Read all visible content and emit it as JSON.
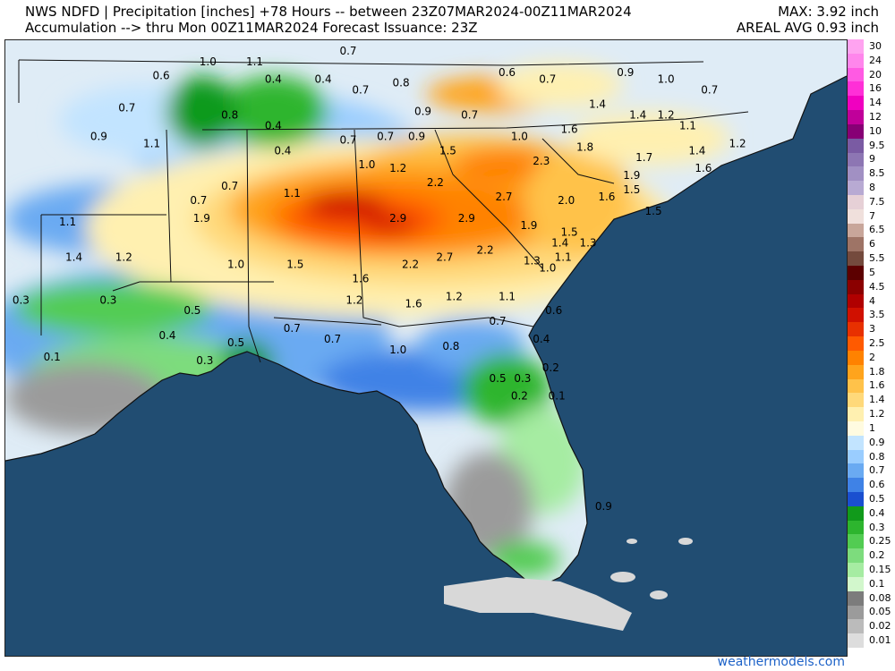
{
  "header": {
    "line1": "NWS NDFD | Precipitation [inches] +78 Hours -- between 23Z07MAR2024-00Z11MAR2024",
    "line2": "Accumulation --> thru Mon 00Z11MAR2024   Forecast Issuance: 23Z",
    "max": "MAX: 3.92 inch",
    "areal_avg": "AREAL AVG 0.93 inch"
  },
  "legend": [
    {
      "label": "30",
      "color": "#ffa3f0"
    },
    {
      "label": "24",
      "color": "#ff86ec"
    },
    {
      "label": "20",
      "color": "#ff5ae3"
    },
    {
      "label": "16",
      "color": "#ff2fd7"
    },
    {
      "label": "14",
      "color": "#f000c0"
    },
    {
      "label": "12",
      "color": "#c0009a"
    },
    {
      "label": "10",
      "color": "#870075"
    },
    {
      "label": "9.5",
      "color": "#7a5ba3"
    },
    {
      "label": "9",
      "color": "#8d76b3"
    },
    {
      "label": "8.5",
      "color": "#a190c3"
    },
    {
      "label": "8",
      "color": "#b8aad3"
    },
    {
      "label": "7.5",
      "color": "#e6d0d6"
    },
    {
      "label": "7",
      "color": "#f0e0dc"
    },
    {
      "label": "6.5",
      "color": "#c8a69a"
    },
    {
      "label": "6",
      "color": "#9e7466"
    },
    {
      "label": "5.5",
      "color": "#744a3d"
    },
    {
      "label": "5",
      "color": "#5c0000"
    },
    {
      "label": "4.5",
      "color": "#8b0000"
    },
    {
      "label": "4",
      "color": "#b00000"
    },
    {
      "label": "3.5",
      "color": "#d01000"
    },
    {
      "label": "3",
      "color": "#e83000"
    },
    {
      "label": "2.5",
      "color": "#ff5a00"
    },
    {
      "label": "2",
      "color": "#ff8200"
    },
    {
      "label": "1.8",
      "color": "#ffa41c"
    },
    {
      "label": "1.6",
      "color": "#ffc24a"
    },
    {
      "label": "1.4",
      "color": "#ffd97a"
    },
    {
      "label": "1.2",
      "color": "#fff0b0"
    },
    {
      "label": "1",
      "color": "#fffbe0"
    },
    {
      "label": "0.9",
      "color": "#c2e4ff"
    },
    {
      "label": "0.8",
      "color": "#9acdff"
    },
    {
      "label": "0.7",
      "color": "#6aaaf2"
    },
    {
      "label": "0.6",
      "color": "#3f82e6"
    },
    {
      "label": "0.5",
      "color": "#1a4fd0"
    },
    {
      "label": "0.4",
      "color": "#119a1b"
    },
    {
      "label": "0.3",
      "color": "#2db52e"
    },
    {
      "label": "0.25",
      "color": "#52cc52"
    },
    {
      "label": "0.2",
      "color": "#7ddc7d"
    },
    {
      "label": "0.15",
      "color": "#a6eca2"
    },
    {
      "label": "0.1",
      "color": "#d2f7cc"
    },
    {
      "label": "0.08",
      "color": "#7c7c7c"
    },
    {
      "label": "0.05",
      "color": "#9b9b9b"
    },
    {
      "label": "0.02",
      "color": "#bbbbbb"
    },
    {
      "label": "0.01",
      "color": "#dddddd"
    }
  ],
  "map_labels": [
    {
      "text": "0.7",
      "lon": -89.0,
      "lat": 38.4
    },
    {
      "text": "1.0",
      "lon": -93.5,
      "lat": 38.1
    },
    {
      "text": "1.1",
      "lon": -92.0,
      "lat": 38.1
    },
    {
      "text": "0.6",
      "lon": -95.0,
      "lat": 37.7
    },
    {
      "text": "0.4",
      "lon": -91.4,
      "lat": 37.6
    },
    {
      "text": "0.4",
      "lon": -89.8,
      "lat": 37.6
    },
    {
      "text": "0.7",
      "lon": -88.6,
      "lat": 37.3
    },
    {
      "text": "0.8",
      "lon": -87.3,
      "lat": 37.5
    },
    {
      "text": "0.6",
      "lon": -83.9,
      "lat": 37.8
    },
    {
      "text": "0.7",
      "lon": -82.6,
      "lat": 37.6
    },
    {
      "text": "0.9",
      "lon": -80.1,
      "lat": 37.8
    },
    {
      "text": "1.0",
      "lon": -78.8,
      "lat": 37.6
    },
    {
      "text": "0.7",
      "lon": -77.4,
      "lat": 37.3
    },
    {
      "text": "0.7",
      "lon": -96.1,
      "lat": 36.8
    },
    {
      "text": "0.8",
      "lon": -92.8,
      "lat": 36.6
    },
    {
      "text": "0.4",
      "lon": -91.4,
      "lat": 36.3
    },
    {
      "text": "0.9",
      "lon": -86.6,
      "lat": 36.7
    },
    {
      "text": "0.7",
      "lon": -85.1,
      "lat": 36.6
    },
    {
      "text": "1.6",
      "lon": -81.9,
      "lat": 36.2
    },
    {
      "text": "1.4",
      "lon": -81.0,
      "lat": 36.9
    },
    {
      "text": "1.4",
      "lon": -79.7,
      "lat": 36.6
    },
    {
      "text": "1.2",
      "lon": -78.8,
      "lat": 36.6
    },
    {
      "text": "1.1",
      "lon": -78.1,
      "lat": 36.3
    },
    {
      "text": "0.9",
      "lon": -97.0,
      "lat": 36.0
    },
    {
      "text": "1.1",
      "lon": -95.3,
      "lat": 35.8
    },
    {
      "text": "0.4",
      "lon": -91.1,
      "lat": 35.6
    },
    {
      "text": "0.7",
      "lon": -89.0,
      "lat": 35.9
    },
    {
      "text": "0.7",
      "lon": -87.8,
      "lat": 36.0
    },
    {
      "text": "0.9",
      "lon": -86.8,
      "lat": 36.0
    },
    {
      "text": "1.0",
      "lon": -83.5,
      "lat": 36.0
    },
    {
      "text": "1.8",
      "lon": -81.4,
      "lat": 35.7
    },
    {
      "text": "1.4",
      "lon": -77.8,
      "lat": 35.6
    },
    {
      "text": "1.2",
      "lon": -76.5,
      "lat": 35.8
    },
    {
      "text": "1.5",
      "lon": -85.8,
      "lat": 35.6
    },
    {
      "text": "1.7",
      "lon": -79.5,
      "lat": 35.4
    },
    {
      "text": "1.6",
      "lon": -77.6,
      "lat": 35.1
    },
    {
      "text": "1.0",
      "lon": -88.4,
      "lat": 35.2
    },
    {
      "text": "1.2",
      "lon": -87.4,
      "lat": 35.1
    },
    {
      "text": "2.3",
      "lon": -82.8,
      "lat": 35.3
    },
    {
      "text": "1.9",
      "lon": -79.9,
      "lat": 34.9
    },
    {
      "text": "2.2",
      "lon": -86.2,
      "lat": 34.7
    },
    {
      "text": "0.7",
      "lon": -93.8,
      "lat": 34.2
    },
    {
      "text": "0.7",
      "lon": -92.8,
      "lat": 34.6
    },
    {
      "text": "1.1",
      "lon": -90.8,
      "lat": 34.4
    },
    {
      "text": "2.7",
      "lon": -84.0,
      "lat": 34.3
    },
    {
      "text": "2.0",
      "lon": -82.0,
      "lat": 34.2
    },
    {
      "text": "1.6",
      "lon": -80.7,
      "lat": 34.3
    },
    {
      "text": "1.5",
      "lon": -79.2,
      "lat": 33.9
    },
    {
      "text": "1.5",
      "lon": -79.9,
      "lat": 34.5
    },
    {
      "text": "1.1",
      "lon": -98.0,
      "lat": 33.6
    },
    {
      "text": "1.9",
      "lon": -93.7,
      "lat": 33.7
    },
    {
      "text": "2.9",
      "lon": -87.4,
      "lat": 33.7
    },
    {
      "text": "2.9",
      "lon": -85.2,
      "lat": 33.7
    },
    {
      "text": "1.9",
      "lon": -83.2,
      "lat": 33.5
    },
    {
      "text": "1.5",
      "lon": -81.9,
      "lat": 33.3
    },
    {
      "text": "1.4",
      "lon": -82.2,
      "lat": 33.0
    },
    {
      "text": "1.3",
      "lon": -81.3,
      "lat": 33.0
    },
    {
      "text": "1.4",
      "lon": -97.8,
      "lat": 32.6
    },
    {
      "text": "1.2",
      "lon": -96.2,
      "lat": 32.6
    },
    {
      "text": "1.0",
      "lon": -92.6,
      "lat": 32.4
    },
    {
      "text": "1.5",
      "lon": -90.7,
      "lat": 32.4
    },
    {
      "text": "2.2",
      "lon": -87.0,
      "lat": 32.4
    },
    {
      "text": "2.7",
      "lon": -85.9,
      "lat": 32.6
    },
    {
      "text": "2.2",
      "lon": -84.6,
      "lat": 32.8
    },
    {
      "text": "1.3",
      "lon": -83.1,
      "lat": 32.5
    },
    {
      "text": "1.1",
      "lon": -82.1,
      "lat": 32.6
    },
    {
      "text": "1.0",
      "lon": -82.6,
      "lat": 32.3
    },
    {
      "text": "1.6",
      "lon": -88.6,
      "lat": 32.0
    },
    {
      "text": "0.3",
      "lon": -99.5,
      "lat": 31.4
    },
    {
      "text": "0.3",
      "lon": -96.7,
      "lat": 31.4
    },
    {
      "text": "1.2",
      "lon": -88.8,
      "lat": 31.4
    },
    {
      "text": "1.6",
      "lon": -86.9,
      "lat": 31.3
    },
    {
      "text": "1.2",
      "lon": -85.6,
      "lat": 31.5
    },
    {
      "text": "1.1",
      "lon": -83.9,
      "lat": 31.5
    },
    {
      "text": "0.6",
      "lon": -82.4,
      "lat": 31.1
    },
    {
      "text": "0.5",
      "lon": -94.0,
      "lat": 31.1
    },
    {
      "text": "0.7",
      "lon": -84.2,
      "lat": 30.8
    },
    {
      "text": "0.7",
      "lon": -90.8,
      "lat": 30.6
    },
    {
      "text": "0.4",
      "lon": -94.8,
      "lat": 30.4
    },
    {
      "text": "0.5",
      "lon": -92.6,
      "lat": 30.2
    },
    {
      "text": "0.7",
      "lon": -89.5,
      "lat": 30.3
    },
    {
      "text": "0.8",
      "lon": -85.7,
      "lat": 30.1
    },
    {
      "text": "0.4",
      "lon": -82.8,
      "lat": 30.3
    },
    {
      "text": "1.0",
      "lon": -87.4,
      "lat": 30.0
    },
    {
      "text": "0.1",
      "lon": -98.5,
      "lat": 29.8
    },
    {
      "text": "0.3",
      "lon": -93.6,
      "lat": 29.7
    },
    {
      "text": "0.2",
      "lon": -82.5,
      "lat": 29.5
    },
    {
      "text": "0.5",
      "lon": -84.2,
      "lat": 29.2
    },
    {
      "text": "0.3",
      "lon": -83.4,
      "lat": 29.2
    },
    {
      "text": "0.2",
      "lon": -83.5,
      "lat": 28.7
    },
    {
      "text": "0.1",
      "lon": -82.3,
      "lat": 28.7
    },
    {
      "text": "0.9",
      "lon": -80.8,
      "lat": 25.6
    }
  ],
  "credit": "weathermodels.com"
}
